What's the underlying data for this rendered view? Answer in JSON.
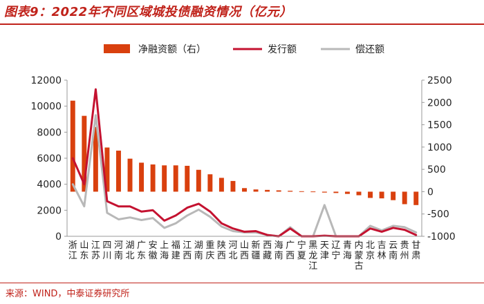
{
  "figure": {
    "title": "图表9：2022年不同区域城投债融资情况（亿元）",
    "source": "来源：WIND，中泰证券研究所"
  },
  "colors": {
    "net_financing": "#d9400e",
    "issuance": "#c41230",
    "repayment": "#b8b8b8",
    "title": "#c0221a"
  },
  "chart_data": {
    "type": "bar+line",
    "legend_position": "top",
    "grid": false,
    "categories": [
      "浙江",
      "山东",
      "江苏",
      "四川",
      "河南",
      "湖北",
      "广东",
      "安徽",
      "上海",
      "福建",
      "江西",
      "湖南",
      "重庆",
      "陕西",
      "河北",
      "山西",
      "新疆",
      "西藏",
      "海南",
      "广西",
      "宁夏",
      "黑龙江",
      "天津",
      "辽宁",
      "青海",
      "内蒙古",
      "北京",
      "吉林",
      "云南",
      "贵州",
      "甘肃"
    ],
    "left_axis": {
      "ticks": [
        0,
        2000,
        4000,
        6000,
        8000,
        10000,
        12000
      ],
      "ylim": [
        0,
        12000
      ]
    },
    "right_axis": {
      "ticks": [
        -1000,
        -500,
        0,
        500,
        1000,
        1500,
        2000,
        2500
      ],
      "ylim": [
        -1000,
        2500
      ]
    },
    "series": [
      {
        "name": "净融资额（右）",
        "type": "bar",
        "axis": "right",
        "values": [
          2040,
          1700,
          1450,
          990,
          920,
          740,
          650,
          610,
          590,
          590,
          580,
          490,
          390,
          310,
          240,
          80,
          50,
          40,
          30,
          20,
          10,
          5,
          -20,
          -30,
          -50,
          -80,
          -140,
          -150,
          -190,
          -280,
          -300
        ]
      },
      {
        "name": "发行额",
        "type": "line",
        "axis": "left",
        "values": [
          6000,
          4000,
          11300,
          2700,
          2300,
          2300,
          1900,
          2000,
          1200,
          1600,
          2200,
          2500,
          1900,
          1000,
          600,
          350,
          400,
          100,
          0,
          600,
          0,
          0,
          50,
          0,
          0,
          0,
          600,
          350,
          650,
          500,
          100
        ]
      },
      {
        "name": "偿还额",
        "type": "line",
        "axis": "left",
        "values": [
          4000,
          2300,
          9300,
          1800,
          1300,
          1450,
          1250,
          1400,
          650,
          1000,
          1600,
          2050,
          1500,
          750,
          400,
          300,
          300,
          100,
          0,
          700,
          0,
          0,
          2400,
          0,
          0,
          0,
          800,
          450,
          800,
          700,
          300
        ]
      }
    ]
  }
}
